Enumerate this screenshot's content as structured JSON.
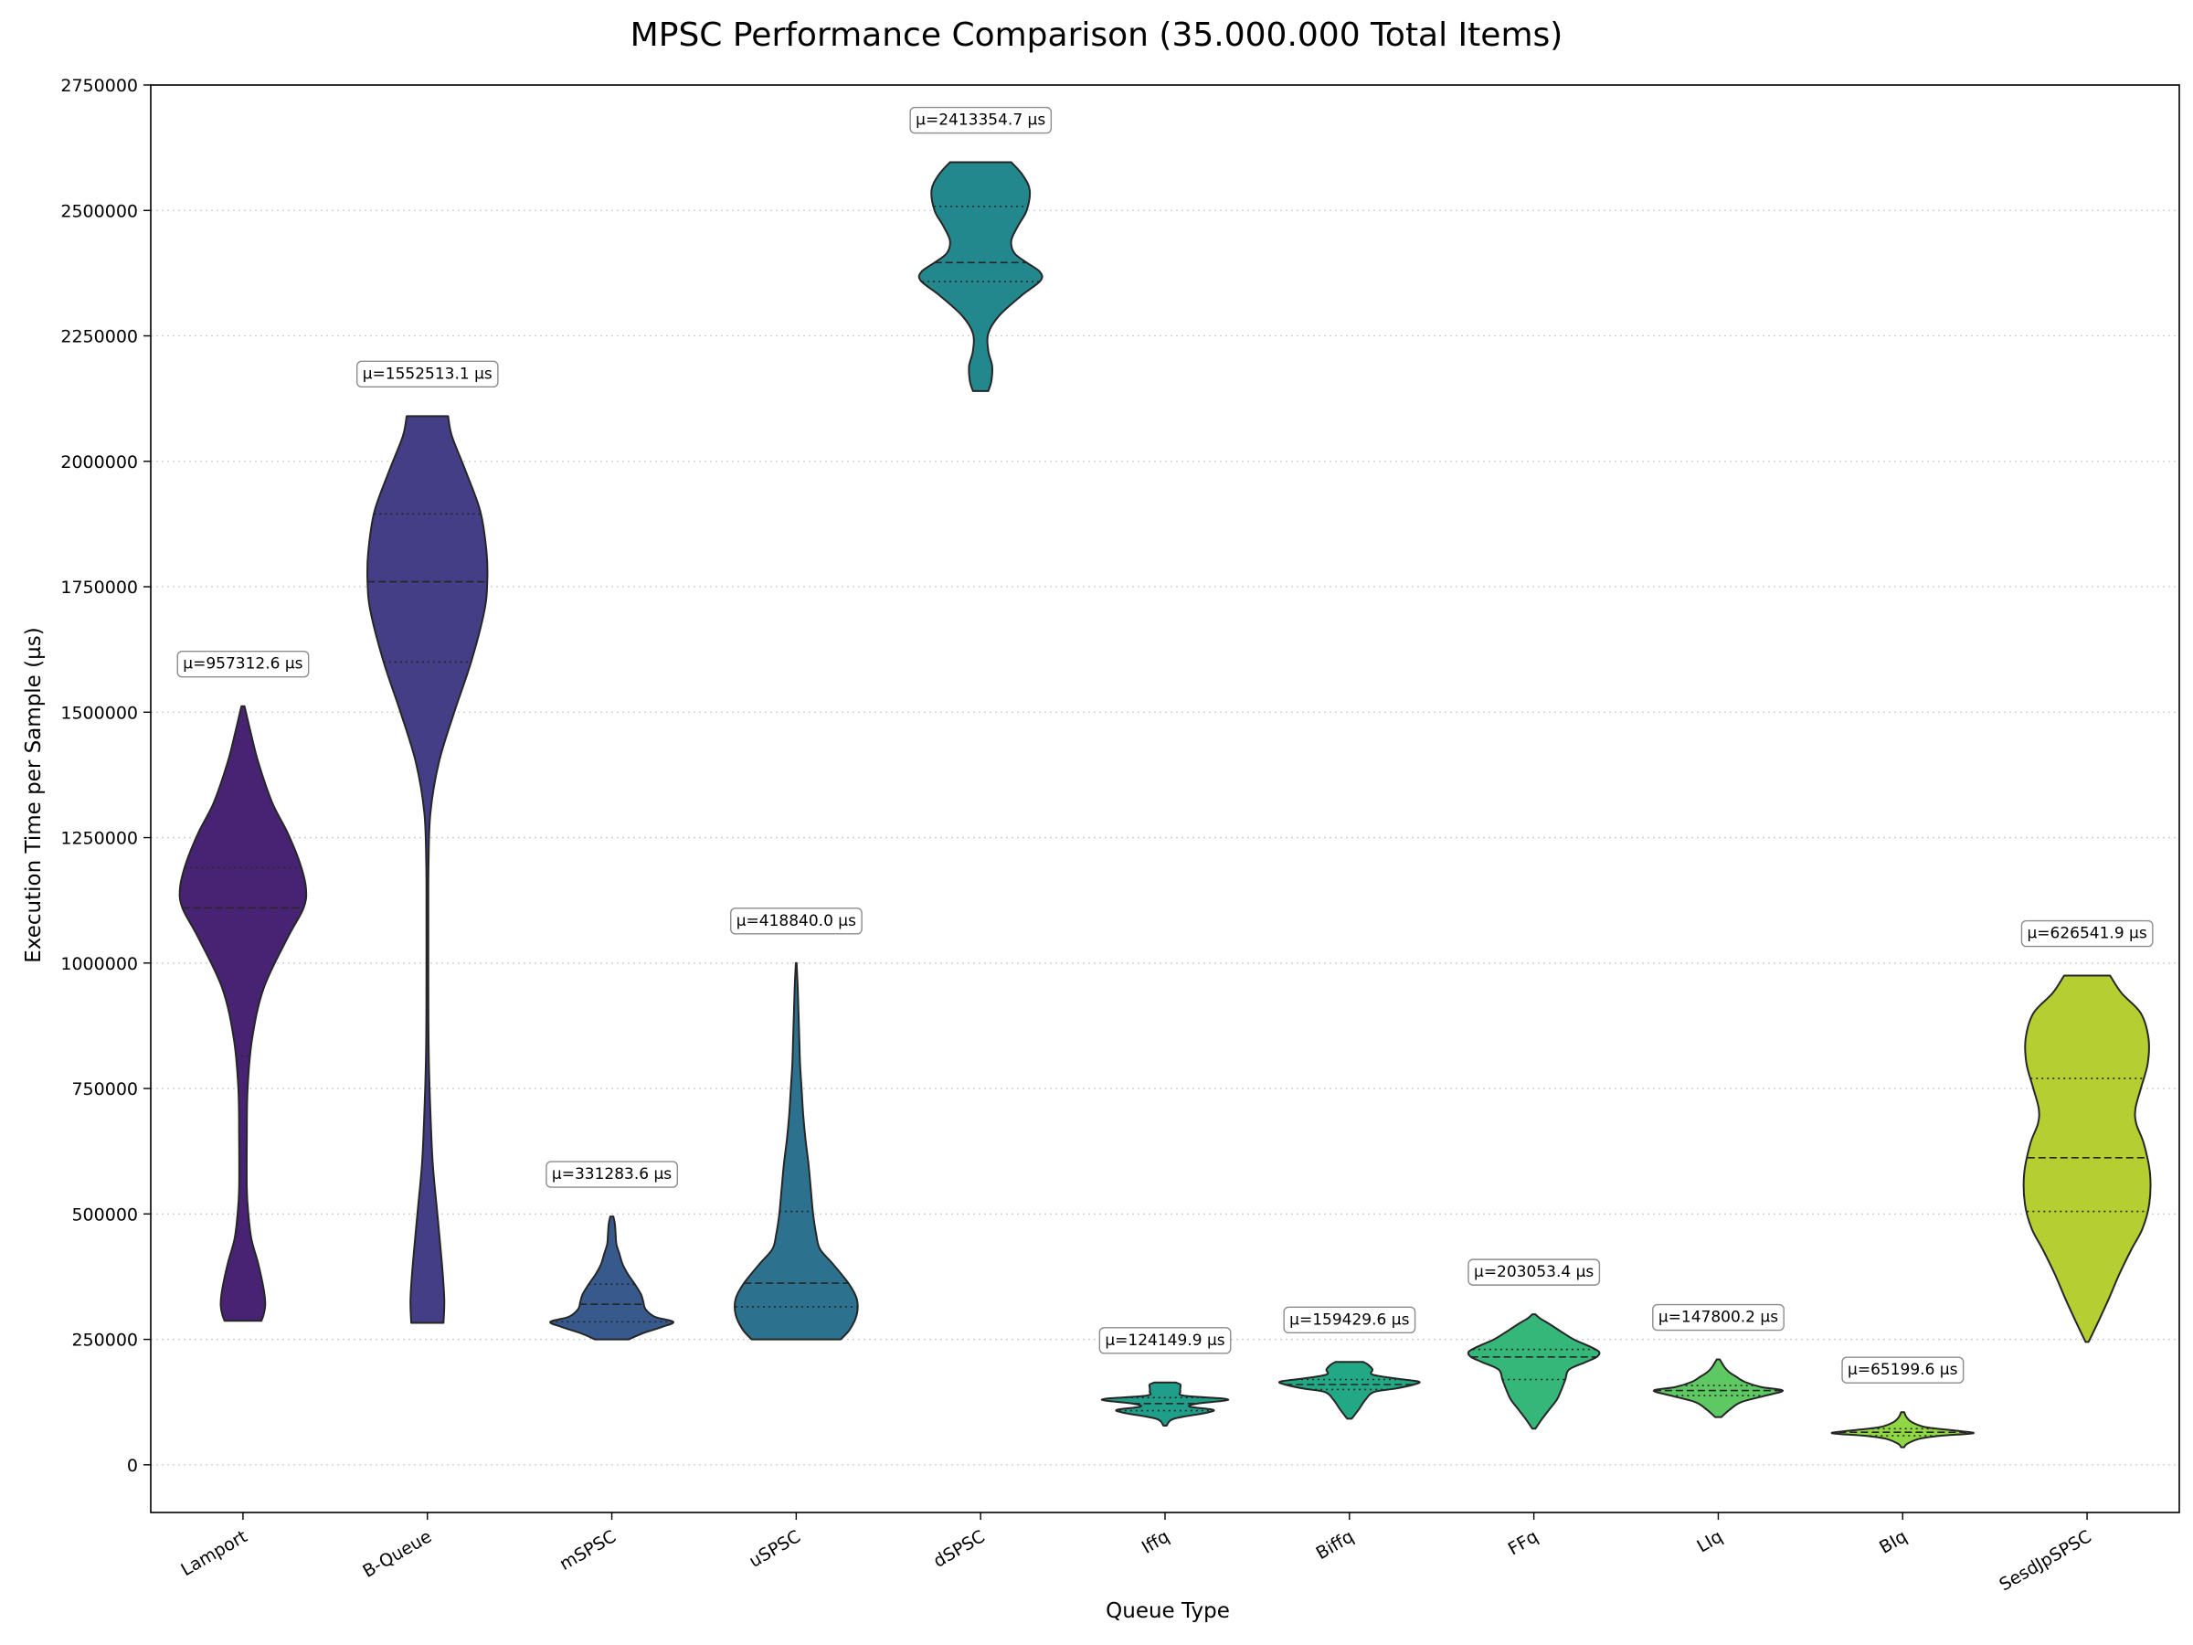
{
  "chart_data": {
    "type": "violin",
    "title": "MPSC Performance Comparison (35.000.000 Total Items)",
    "xlabel": "Queue Type",
    "ylabel": "Execution Time per Sample (µs)",
    "ylim": [
      -95000,
      2750000
    ],
    "yticks": [
      0,
      250000,
      500000,
      750000,
      1000000,
      1250000,
      1500000,
      1750000,
      2000000,
      2250000,
      2500000,
      2750000
    ],
    "grid": "y-dotted",
    "categories": [
      "Lamport",
      "B-Queue",
      "mSPSC",
      "uSPSC",
      "dSPSC",
      "Iffq",
      "Biffq",
      "FFq",
      "LIq",
      "BIq",
      "SesdJpSPSC"
    ],
    "series": [
      {
        "category": "Lamport",
        "mean_label": "µ=957312.6 µs",
        "min": 287000,
        "max": 1512000,
        "q1": 815000,
        "median": 1110000,
        "q3": 1190000,
        "color": "#482374",
        "profile": [
          [
            287000,
            0.24
          ],
          [
            300000,
            0.27
          ],
          [
            320000,
            0.29
          ],
          [
            350000,
            0.27
          ],
          [
            400000,
            0.2
          ],
          [
            450000,
            0.11
          ],
          [
            500000,
            0.07
          ],
          [
            550000,
            0.05
          ],
          [
            650000,
            0.05
          ],
          [
            750000,
            0.06
          ],
          [
            850000,
            0.12
          ],
          [
            950000,
            0.27
          ],
          [
            1050000,
            0.58
          ],
          [
            1110000,
            0.79
          ],
          [
            1150000,
            0.82
          ],
          [
            1200000,
            0.74
          ],
          [
            1260000,
            0.58
          ],
          [
            1320000,
            0.38
          ],
          [
            1400000,
            0.2
          ],
          [
            1460000,
            0.1
          ],
          [
            1512000,
            0.02
          ]
        ]
      },
      {
        "category": "B-Queue",
        "mean_label": "µ=1552513.1 µs",
        "min": 283000,
        "max": 2090000,
        "q1": 1600000,
        "median": 1760000,
        "q3": 1895000,
        "color": "#433e85",
        "profile": [
          [
            283000,
            0.21
          ],
          [
            330000,
            0.22
          ],
          [
            400000,
            0.19
          ],
          [
            500000,
            0.13
          ],
          [
            600000,
            0.07
          ],
          [
            700000,
            0.04
          ],
          [
            800000,
            0.02
          ],
          [
            900000,
            0.013
          ],
          [
            1100000,
            0.012
          ],
          [
            1200000,
            0.015
          ],
          [
            1300000,
            0.04
          ],
          [
            1400000,
            0.15
          ],
          [
            1500000,
            0.35
          ],
          [
            1600000,
            0.57
          ],
          [
            1700000,
            0.74
          ],
          [
            1760000,
            0.78
          ],
          [
            1820000,
            0.77
          ],
          [
            1900000,
            0.69
          ],
          [
            1980000,
            0.5
          ],
          [
            2050000,
            0.32
          ],
          [
            2090000,
            0.27
          ]
        ]
      },
      {
        "category": "mSPSC",
        "mean_label": "µ=331283.6 µs",
        "min": 250000,
        "max": 495000,
        "q1": 285000,
        "median": 320000,
        "q3": 360000,
        "color": "#38598c",
        "profile": [
          [
            250000,
            0.22
          ],
          [
            262000,
            0.4
          ],
          [
            275000,
            0.66
          ],
          [
            285000,
            0.8
          ],
          [
            295000,
            0.56
          ],
          [
            310000,
            0.44
          ],
          [
            325000,
            0.41
          ],
          [
            340000,
            0.38
          ],
          [
            360000,
            0.3
          ],
          [
            380000,
            0.21
          ],
          [
            400000,
            0.14
          ],
          [
            420000,
            0.1
          ],
          [
            440000,
            0.06
          ],
          [
            460000,
            0.05
          ],
          [
            480000,
            0.04
          ],
          [
            495000,
            0.02
          ]
        ]
      },
      {
        "category": "uSPSC",
        "mean_label": "µ=418840.0 µs",
        "min": 250000,
        "max": 1000000,
        "q1": 315000,
        "median": 362000,
        "q3": 505000,
        "color": "#2c728e",
        "profile": [
          [
            250000,
            0.58
          ],
          [
            270000,
            0.7
          ],
          [
            300000,
            0.79
          ],
          [
            330000,
            0.79
          ],
          [
            360000,
            0.69
          ],
          [
            400000,
            0.48
          ],
          [
            430000,
            0.31
          ],
          [
            460000,
            0.26
          ],
          [
            500000,
            0.22
          ],
          [
            550000,
            0.19
          ],
          [
            600000,
            0.16
          ],
          [
            650000,
            0.12
          ],
          [
            700000,
            0.09
          ],
          [
            750000,
            0.07
          ],
          [
            800000,
            0.05
          ],
          [
            850000,
            0.04
          ],
          [
            900000,
            0.03
          ],
          [
            950000,
            0.02
          ],
          [
            1000000,
            0.005
          ]
        ]
      },
      {
        "category": "dSPSC",
        "mean_label": "µ=2413354.7 µs",
        "min": 2140000,
        "max": 2596000,
        "q1": 2358000,
        "median": 2396000,
        "q3": 2508000,
        "color": "#23888e",
        "profile": [
          [
            2140000,
            0.1
          ],
          [
            2160000,
            0.14
          ],
          [
            2190000,
            0.15
          ],
          [
            2220000,
            0.1
          ],
          [
            2255000,
            0.1
          ],
          [
            2290000,
            0.24
          ],
          [
            2330000,
            0.53
          ],
          [
            2360000,
            0.78
          ],
          [
            2378000,
            0.77
          ],
          [
            2396000,
            0.6
          ],
          [
            2415000,
            0.44
          ],
          [
            2440000,
            0.4
          ],
          [
            2470000,
            0.49
          ],
          [
            2500000,
            0.6
          ],
          [
            2540000,
            0.64
          ],
          [
            2570000,
            0.55
          ],
          [
            2596000,
            0.4
          ]
        ]
      },
      {
        "category": "Iffq",
        "mean_label": "µ=124149.9 µs",
        "min": 78000,
        "max": 164000,
        "q1": 108000,
        "median": 122000,
        "q3": 134000,
        "color": "#1f9e89",
        "profile": [
          [
            78000,
            0.02
          ],
          [
            92000,
            0.12
          ],
          [
            104000,
            0.55
          ],
          [
            110000,
            0.62
          ],
          [
            116000,
            0.32
          ],
          [
            122000,
            0.42
          ],
          [
            128000,
            0.78
          ],
          [
            132000,
            0.76
          ],
          [
            138000,
            0.24
          ],
          [
            146000,
            0.2
          ],
          [
            154000,
            0.2
          ],
          [
            160000,
            0.2
          ],
          [
            164000,
            0.14
          ]
        ]
      },
      {
        "category": "Biffq",
        "mean_label": "µ=159429.6 µs",
        "min": 92000,
        "max": 205000,
        "q1": 150000,
        "median": 160000,
        "q3": 170000,
        "color": "#22a884",
        "profile": [
          [
            92000,
            0.03
          ],
          [
            110000,
            0.12
          ],
          [
            130000,
            0.21
          ],
          [
            145000,
            0.32
          ],
          [
            152000,
            0.6
          ],
          [
            160000,
            0.84
          ],
          [
            166000,
            0.9
          ],
          [
            172000,
            0.6
          ],
          [
            180000,
            0.3
          ],
          [
            190000,
            0.3
          ],
          [
            200000,
            0.24
          ],
          [
            205000,
            0.18
          ]
        ]
      },
      {
        "category": "FFq",
        "mean_label": "µ=203053.4 µs",
        "min": 72000,
        "max": 300000,
        "q1": 170000,
        "median": 215000,
        "q3": 230000,
        "color": "#35b779",
        "profile": [
          [
            72000,
            0.02
          ],
          [
            90000,
            0.1
          ],
          [
            110000,
            0.2
          ],
          [
            130000,
            0.3
          ],
          [
            150000,
            0.36
          ],
          [
            170000,
            0.41
          ],
          [
            190000,
            0.46
          ],
          [
            205000,
            0.68
          ],
          [
            215000,
            0.82
          ],
          [
            225000,
            0.85
          ],
          [
            235000,
            0.74
          ],
          [
            250000,
            0.52
          ],
          [
            265000,
            0.36
          ],
          [
            280000,
            0.21
          ],
          [
            292000,
            0.08
          ],
          [
            300000,
            0.02
          ]
        ]
      },
      {
        "category": "LIq",
        "mean_label": "µ=147800.2 µs",
        "min": 95000,
        "max": 210000,
        "q1": 138000,
        "median": 148000,
        "q3": 158000,
        "color": "#5ec962",
        "profile": [
          [
            95000,
            0.04
          ],
          [
            110000,
            0.15
          ],
          [
            125000,
            0.3
          ],
          [
            138000,
            0.62
          ],
          [
            148000,
            0.84
          ],
          [
            155000,
            0.56
          ],
          [
            165000,
            0.35
          ],
          [
            175000,
            0.24
          ],
          [
            185000,
            0.14
          ],
          [
            195000,
            0.08
          ],
          [
            210000,
            0.02
          ]
        ]
      },
      {
        "category": "BIq",
        "mean_label": "µ=65199.6 µs",
        "min": 35000,
        "max": 105000,
        "q1": 58000,
        "median": 65000,
        "q3": 72000,
        "color": "#8fd744",
        "profile": [
          [
            35000,
            0.02
          ],
          [
            42000,
            0.06
          ],
          [
            52000,
            0.22
          ],
          [
            58000,
            0.5
          ],
          [
            63000,
            0.92
          ],
          [
            68000,
            0.7
          ],
          [
            75000,
            0.3
          ],
          [
            85000,
            0.12
          ],
          [
            95000,
            0.05
          ],
          [
            105000,
            0.02
          ]
        ]
      },
      {
        "category": "SesdJpSPSC",
        "mean_label": "µ=626541.9 µs",
        "min": 245000,
        "max": 975000,
        "q1": 505000,
        "median": 612000,
        "q3": 770000,
        "color": "#b5cf32",
        "profile": [
          [
            245000,
            0.02
          ],
          [
            280000,
            0.13
          ],
          [
            330000,
            0.28
          ],
          [
            380000,
            0.42
          ],
          [
            430000,
            0.58
          ],
          [
            470000,
            0.72
          ],
          [
            520000,
            0.81
          ],
          [
            580000,
            0.82
          ],
          [
            640000,
            0.74
          ],
          [
            680000,
            0.64
          ],
          [
            710000,
            0.63
          ],
          [
            750000,
            0.7
          ],
          [
            800000,
            0.79
          ],
          [
            850000,
            0.8
          ],
          [
            900000,
            0.7
          ],
          [
            940000,
            0.45
          ],
          [
            975000,
            0.3
          ]
        ]
      }
    ]
  }
}
